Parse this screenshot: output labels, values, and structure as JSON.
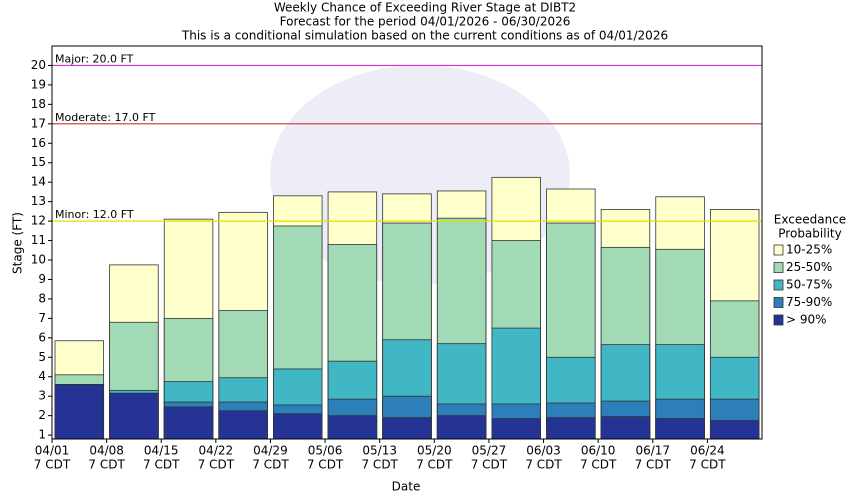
{
  "chart_data": {
    "type": "overlap-bar",
    "title": "Weekly Chance of Exceeding River Stage at DIBT2",
    "subtitle": "Forecast for the period 04/01/2026 - 06/30/2026",
    "note": "This is a conditional simulation based on the current conditions as of 04/01/2026",
    "x_label": "Date",
    "y_label": "Stage (FT)",
    "categories": [
      "04/01",
      "04/08",
      "04/15",
      "04/22",
      "04/29",
      "05/06",
      "05/13",
      "05/20",
      "05/27",
      "06/03",
      "06/10",
      "06/17",
      "06/24"
    ],
    "category_times": [
      "7 CDT",
      "7 CDT",
      "7 CDT",
      "7 CDT",
      "7 CDT",
      "7 CDT",
      "7 CDT",
      "7 CDT",
      "7 CDT",
      "7 CDT",
      "7 CDT",
      "7 CDT",
      "7 CDT"
    ],
    "legend_title": [
      "Exceedance",
      "Probability"
    ],
    "series": [
      {
        "name": "10-25%",
        "color": "#ffffcc",
        "values": [
          5.85,
          9.75,
          12.1,
          12.45,
          13.3,
          13.5,
          13.4,
          13.55,
          14.25,
          13.65,
          12.6,
          13.25,
          12.6
        ]
      },
      {
        "name": "25-50%",
        "color": "#a1dab4",
        "values": [
          4.1,
          6.8,
          7.0,
          7.4,
          11.75,
          10.8,
          11.9,
          12.15,
          11.0,
          11.9,
          10.65,
          10.55,
          7.9
        ]
      },
      {
        "name": "50-75%",
        "color": "#41b6c4",
        "values": [
          3.6,
          3.3,
          3.75,
          3.95,
          4.4,
          4.8,
          5.9,
          5.7,
          6.5,
          5.0,
          5.65,
          5.65,
          5.0
        ]
      },
      {
        "name": "75-90%",
        "color": "#2c7fb8",
        "values": [
          3.6,
          3.15,
          2.7,
          2.7,
          2.55,
          2.85,
          3.0,
          2.6,
          2.6,
          2.65,
          2.75,
          2.85,
          2.85
        ]
      },
      {
        "name": "> 90%",
        "color": "#253494",
        "values": [
          3.6,
          3.15,
          2.45,
          2.25,
          2.1,
          2.0,
          1.9,
          2.0,
          1.85,
          1.9,
          1.95,
          1.85,
          1.75
        ]
      }
    ],
    "thresholds": [
      {
        "label": "Major: 20.0 FT",
        "value": 20,
        "color": "#cc33cc"
      },
      {
        "label": "Moderate: 17.0 FT",
        "value": 17,
        "color": "#cc3333"
      },
      {
        "label": "Minor: 12.0 FT",
        "value": 12,
        "color": "#e0e000"
      }
    ],
    "ylim": [
      0.8,
      21
    ],
    "yticks": [
      1,
      2,
      3,
      4,
      5,
      6,
      7,
      8,
      9,
      10,
      11,
      12,
      13,
      14,
      15,
      16,
      17,
      18,
      19,
      20
    ]
  }
}
